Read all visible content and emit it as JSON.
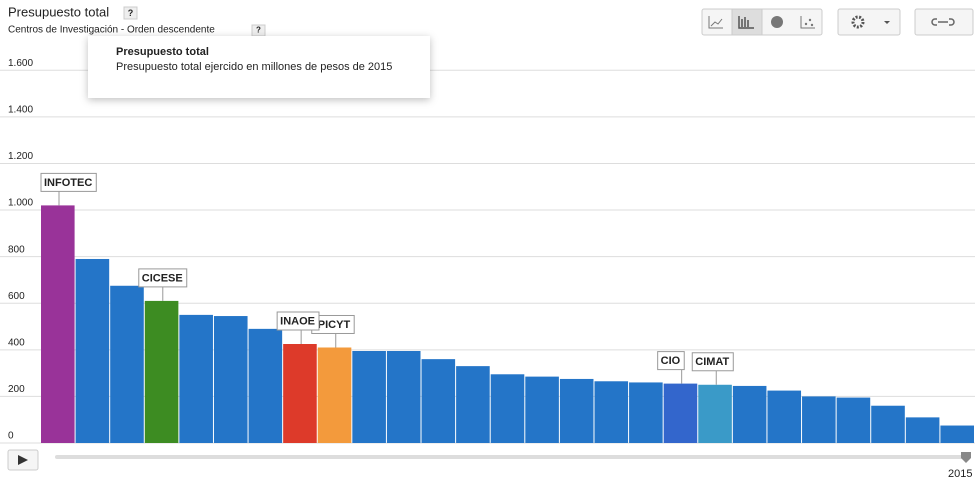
{
  "chart_data": {
    "type": "bar",
    "title": "Presupuesto total",
    "subtitle": "Centros de Investigación - Orden descendente",
    "categories": [
      "INFOTEC",
      null,
      null,
      "CICESE",
      null,
      null,
      null,
      "INAOE",
      "IPICYT",
      null,
      null,
      null,
      null,
      null,
      null,
      null,
      null,
      null,
      "CIO",
      "CIMAT",
      null,
      null,
      null,
      null,
      null,
      null,
      null
    ],
    "values": [
      1020,
      790,
      675,
      610,
      550,
      545,
      490,
      425,
      410,
      395,
      395,
      360,
      330,
      295,
      285,
      275,
      265,
      260,
      255,
      250,
      245,
      225,
      200,
      195,
      160,
      110,
      75
    ],
    "colors": [
      "#993399",
      "#2475c8",
      "#2475c8",
      "#3d8c22",
      "#2475c8",
      "#2475c8",
      "#2475c8",
      "#dd3a2a",
      "#f39a3c",
      "#2475c8",
      "#2475c8",
      "#2475c8",
      "#2475c8",
      "#2475c8",
      "#2475c8",
      "#2475c8",
      "#2475c8",
      "#2475c8",
      "#3366cc",
      "#3a9ac8",
      "#2475c8",
      "#2475c8",
      "#2475c8",
      "#2475c8",
      "#2475c8",
      "#2475c8",
      "#2475c8"
    ],
    "ylim": [
      0,
      1700
    ],
    "yticks": [
      0,
      200,
      400,
      600,
      800,
      {
        "value": 1000,
        "label": "1.000"
      },
      {
        "value": 1200,
        "label": "1.200"
      },
      {
        "value": 1400,
        "label": "1.400"
      },
      {
        "value": 1600,
        "label": "1.600"
      }
    ],
    "grid": true
  },
  "tooltip": {
    "title": "Presupuesto total",
    "text": "Presupuesto total ejercido en millones de pesos de 2015"
  },
  "help": "?",
  "timeline": {
    "year": "2015"
  }
}
